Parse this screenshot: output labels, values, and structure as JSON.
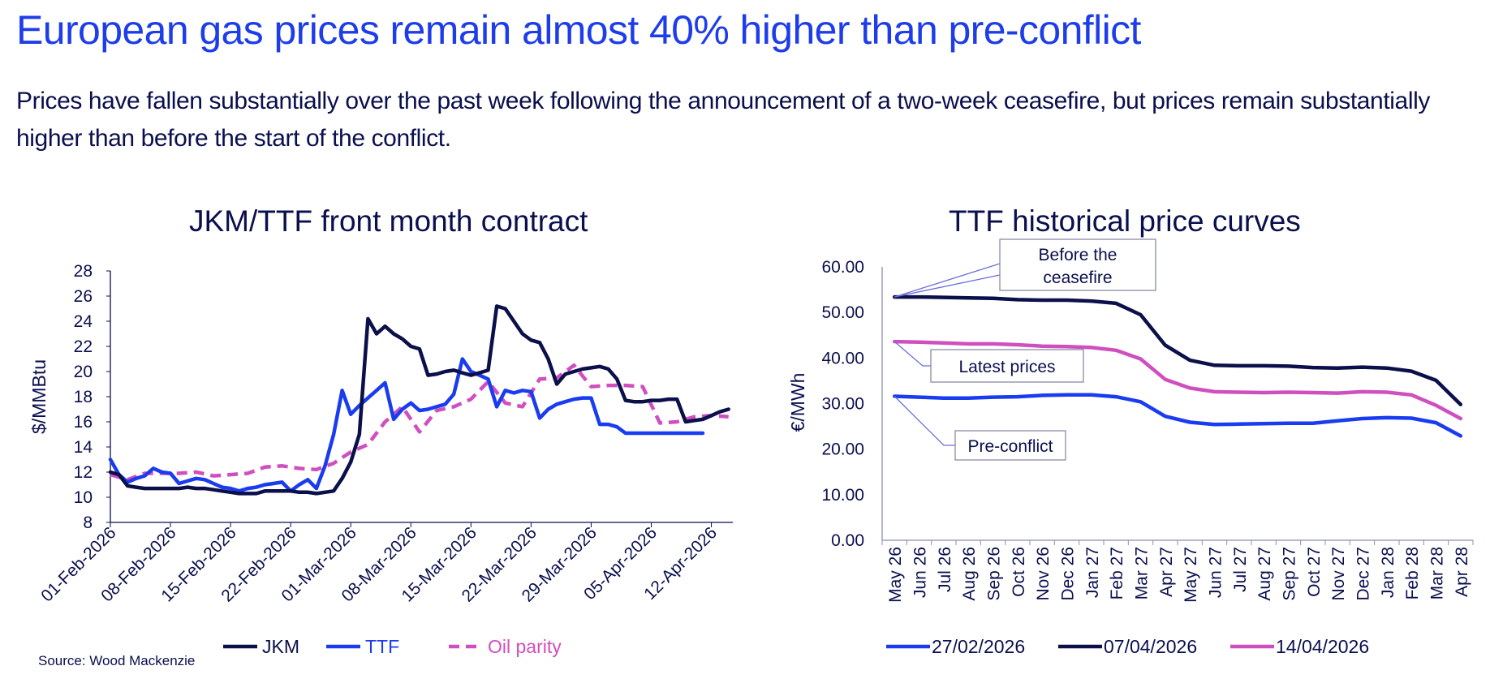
{
  "headline": "European gas prices remain almost 40% higher than pre-conflict",
  "subtitle": "Prices have fallen substantially over the past week following the announcement of a two-week ceasefire, but prices remain substantially higher than before the start of the conflict.",
  "source": "Source: Wood Mackenzie",
  "colors": {
    "headline": "#1e3dea",
    "text": "#0a0f4d",
    "jkm": "#0b0f4a",
    "ttf": "#1a3cf0",
    "oil": "#d04fbf"
  },
  "chart_data": [
    {
      "type": "line",
      "title": "JKM/TTF front month contract",
      "xlabel": "",
      "ylabel": "$/MMBtu",
      "ylim": [
        8,
        28
      ],
      "yticks": [
        8,
        10,
        12,
        14,
        16,
        18,
        20,
        22,
        24,
        26,
        28
      ],
      "xticks": [
        {
          "day": 0,
          "label": "01-Feb-2026"
        },
        {
          "day": 7,
          "label": "08-Feb-2026"
        },
        {
          "day": 14,
          "label": "15-Feb-2026"
        },
        {
          "day": 21,
          "label": "22-Feb-2026"
        },
        {
          "day": 28,
          "label": "01-Mar-2026"
        },
        {
          "day": 35,
          "label": "08-Mar-2026"
        },
        {
          "day": 42,
          "label": "15-Mar-2026"
        },
        {
          "day": 49,
          "label": "22-Mar-2026"
        },
        {
          "day": 56,
          "label": "29-Mar-2026"
        },
        {
          "day": 63,
          "label": "05-Apr-2026"
        },
        {
          "day": 70,
          "label": "12-Apr-2026"
        }
      ],
      "xlim": [
        0,
        72.5
      ],
      "x_unit": "days since 01-Feb-2026",
      "legend": "bottom",
      "series": [
        {
          "name": "JKM",
          "style": "solid",
          "color": "#0b0f4a",
          "x": [
            0,
            1,
            2,
            3,
            4,
            5,
            6,
            7,
            8,
            9,
            10,
            11,
            12,
            13,
            14,
            15,
            16,
            17,
            18,
            19,
            20,
            21,
            22,
            23,
            24,
            25,
            26,
            27,
            28,
            29,
            30,
            31,
            32,
            33,
            34,
            35,
            36,
            37,
            38,
            39,
            40,
            41,
            42,
            43,
            44,
            45,
            46,
            47,
            48,
            49,
            50,
            51,
            52,
            53,
            54,
            55,
            56,
            57,
            58,
            59,
            60,
            61,
            62,
            63,
            64,
            65,
            66,
            67,
            68,
            69,
            70,
            71,
            72
          ],
          "values": [
            12.0,
            11.8,
            10.9,
            10.8,
            10.7,
            10.7,
            10.7,
            10.7,
            10.7,
            10.8,
            10.7,
            10.7,
            10.6,
            10.5,
            10.4,
            10.3,
            10.3,
            10.3,
            10.5,
            10.5,
            10.5,
            10.5,
            10.4,
            10.4,
            10.3,
            10.4,
            10.5,
            11.5,
            12.8,
            15.0,
            24.2,
            23.0,
            23.6,
            23.0,
            22.6,
            22.0,
            21.8,
            19.7,
            19.8,
            20.0,
            20.1,
            19.9,
            19.7,
            19.9,
            20.1,
            25.2,
            25.0,
            24.0,
            23.0,
            22.5,
            22.3,
            21.0,
            19.0,
            19.8,
            20.0,
            20.2,
            20.3,
            20.4,
            20.2,
            19.4,
            17.7,
            17.6,
            17.6,
            17.7,
            17.7,
            17.8,
            17.8,
            16.0,
            16.1,
            16.2,
            16.5,
            16.8,
            17.0
          ]
        },
        {
          "name": "TTF",
          "style": "solid",
          "color": "#1a3cf0",
          "x": [
            0,
            1,
            2,
            3,
            4,
            5,
            6,
            7,
            8,
            9,
            10,
            11,
            12,
            13,
            14,
            15,
            16,
            17,
            18,
            19,
            20,
            21,
            22,
            23,
            24,
            25,
            26,
            27,
            28,
            29,
            30,
            31,
            32,
            33,
            34,
            35,
            36,
            37,
            38,
            39,
            40,
            41,
            42,
            43,
            44,
            45,
            46,
            47,
            48,
            49,
            50,
            51,
            52,
            53,
            54,
            55,
            56,
            57,
            58,
            59,
            60,
            61,
            62,
            63,
            64,
            65,
            66,
            67,
            68,
            69
          ],
          "values": [
            13.0,
            11.8,
            11.2,
            11.5,
            11.7,
            12.3,
            12.0,
            11.9,
            11.1,
            11.3,
            11.5,
            11.4,
            11.1,
            10.8,
            10.7,
            10.5,
            10.7,
            10.8,
            11.0,
            11.1,
            11.2,
            10.5,
            11.0,
            11.4,
            10.7,
            12.5,
            15.0,
            18.5,
            16.6,
            17.3,
            17.9,
            18.5,
            19.1,
            16.2,
            17.0,
            17.5,
            16.9,
            17.0,
            17.2,
            17.4,
            18.2,
            21.0,
            20.0,
            19.7,
            19.4,
            17.2,
            18.5,
            18.3,
            18.5,
            18.4,
            16.3,
            17.0,
            17.4,
            17.6,
            17.8,
            17.9,
            17.9,
            15.8,
            15.8,
            15.6,
            15.1,
            15.1,
            15.1,
            15.1,
            15.1,
            15.1,
            15.1,
            15.1,
            15.1,
            15.1
          ]
        },
        {
          "name": "Oil parity",
          "style": "dashed",
          "color": "#d04fbf",
          "x": [
            0,
            2,
            4,
            6,
            8,
            10,
            12,
            14,
            16,
            18,
            20,
            22,
            24,
            26,
            28,
            30,
            32,
            34,
            36,
            38,
            40,
            42,
            44,
            46,
            48,
            50,
            52,
            54,
            56,
            58,
            60,
            62,
            64,
            66,
            68,
            70,
            72
          ],
          "values": [
            11.8,
            11.4,
            11.9,
            11.9,
            11.9,
            12.0,
            11.7,
            11.8,
            11.9,
            12.4,
            12.5,
            12.3,
            12.2,
            12.7,
            13.6,
            14.2,
            16.0,
            17.2,
            15.2,
            16.9,
            17.2,
            17.8,
            19.2,
            17.5,
            17.2,
            19.4,
            19.5,
            20.5,
            18.8,
            18.9,
            18.9,
            18.8,
            15.9,
            16.0,
            16.4,
            16.5,
            16.4
          ]
        }
      ]
    },
    {
      "type": "line",
      "title": "TTF historical price curves",
      "xlabel": "",
      "ylabel": "€/MWh",
      "ylim": [
        0,
        60
      ],
      "yticks": [
        "0.00",
        "10.00",
        "20.00",
        "30.00",
        "40.00",
        "50.00",
        "60.00"
      ],
      "categories": [
        "May 26",
        "Jun 26",
        "Jul 26",
        "Aug 26",
        "Sep 26",
        "Oct 26",
        "Nov 26",
        "Dec 26",
        "Jan 27",
        "Feb 27",
        "Mar 27",
        "Apr 27",
        "May 27",
        "Jun 27",
        "Jul 27",
        "Aug 27",
        "Sep 27",
        "Oct 27",
        "Nov 27",
        "Dec 27",
        "Jan 28",
        "Feb 28",
        "Mar 28",
        "Apr 28"
      ],
      "legend": "bottom",
      "series": [
        {
          "name": "27/02/2026",
          "color": "#1a3cf0",
          "values": [
            31.6,
            31.4,
            31.2,
            31.2,
            31.4,
            31.5,
            31.8,
            31.9,
            31.9,
            31.5,
            30.4,
            27.2,
            25.9,
            25.4,
            25.5,
            25.6,
            25.7,
            25.7,
            26.2,
            26.7,
            26.9,
            26.8,
            25.8,
            22.9
          ]
        },
        {
          "name": "07/04/2026",
          "color": "#0b0f4a",
          "values": [
            53.4,
            53.4,
            53.3,
            53.2,
            53.1,
            52.8,
            52.7,
            52.7,
            52.5,
            52.0,
            49.5,
            42.8,
            39.5,
            38.4,
            38.3,
            38.3,
            38.2,
            37.9,
            37.8,
            38.0,
            37.8,
            37.1,
            35.1,
            29.8
          ]
        },
        {
          "name": "14/04/2026",
          "color": "#d04fbf",
          "values": [
            43.6,
            43.5,
            43.3,
            43.1,
            43.1,
            42.9,
            42.6,
            42.5,
            42.3,
            41.7,
            39.8,
            35.3,
            33.4,
            32.6,
            32.5,
            32.4,
            32.5,
            32.4,
            32.3,
            32.6,
            32.5,
            31.9,
            29.6,
            26.7
          ]
        }
      ],
      "annotations": [
        "Before the\nceasefire",
        "Latest prices",
        "Pre-conflict"
      ]
    }
  ]
}
